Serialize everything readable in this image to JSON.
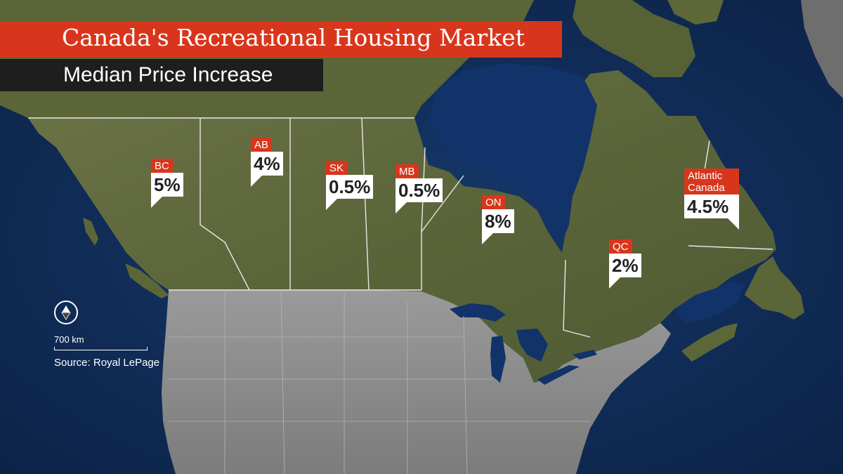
{
  "title": "Canada's Recreational Housing Market",
  "subtitle": "Median Price Increase",
  "markers": [
    {
      "label": "BC",
      "value": "5%"
    },
    {
      "label": "AB",
      "value": "4%"
    },
    {
      "label": "SK",
      "value": "0.5%"
    },
    {
      "label": "MB",
      "value": "0.5%"
    },
    {
      "label": "ON",
      "value": "8%"
    },
    {
      "label": "QC",
      "value": "2%"
    },
    {
      "label": "Atlantic",
      "label2": "Canada",
      "value": "4.5%"
    }
  ],
  "scale": "700 km",
  "source": "Source: Royal LePage",
  "colors": {
    "accent": "#d8361c",
    "water": "#0f2a52",
    "canada_land": "#5e6a3c",
    "usa_land": "#8a8a8a",
    "dark_bar": "#1e1e1e"
  },
  "icons": {
    "compass": "compass-icon"
  }
}
